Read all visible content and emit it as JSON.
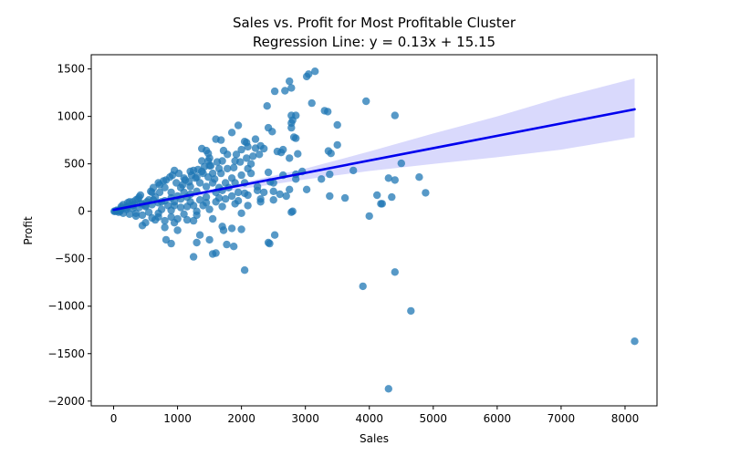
{
  "chart_data": {
    "type": "scatter",
    "title_line1": "Sales vs. Profit for Most Profitable Cluster",
    "title_line2": "Regression Line: y = 0.13x + 15.15",
    "xlabel": "Sales",
    "ylabel": "Profit",
    "xlim": [
      -350,
      8500
    ],
    "ylim": [
      -2050,
      1650
    ],
    "xticks": [
      0,
      1000,
      2000,
      3000,
      4000,
      5000,
      6000,
      7000,
      8000
    ],
    "yticks": [
      -2000,
      -1500,
      -1000,
      -500,
      0,
      500,
      1000,
      1500
    ],
    "xtick_labels": [
      "0",
      "1000",
      "2000",
      "3000",
      "4000",
      "5000",
      "6000",
      "7000",
      "8000"
    ],
    "ytick_labels": [
      "−2000",
      "−1500",
      "−1000",
      "−500",
      "0",
      "500",
      "1000",
      "1500"
    ],
    "grid": false,
    "colors": {
      "points": "#1f77b4",
      "line": "#0000ee",
      "band": "#d2d2fc"
    },
    "regression": {
      "slope": 0.13,
      "intercept": 15.15
    },
    "confidence_band": {
      "x": [
        0,
        1000,
        2000,
        3000,
        4000,
        5000,
        6000,
        7000,
        8150
      ],
      "lower": [
        8,
        125,
        235,
        335,
        425,
        500,
        570,
        650,
        780
      ],
      "upper": [
        25,
        155,
        300,
        450,
        630,
        820,
        1000,
        1200,
        1400
      ]
    },
    "points": [
      [
        3150,
        1475
      ],
      [
        3050,
        1445
      ],
      [
        3020,
        1420
      ],
      [
        2750,
        1370
      ],
      [
        2680,
        1270
      ],
      [
        2520,
        1265
      ],
      [
        2780,
        1300
      ],
      [
        3100,
        1140
      ],
      [
        3950,
        1160
      ],
      [
        2400,
        1110
      ],
      [
        3300,
        1060
      ],
      [
        3350,
        1050
      ],
      [
        4400,
        1010
      ],
      [
        2780,
        1010
      ],
      [
        2850,
        1010
      ],
      [
        2800,
        960
      ],
      [
        2780,
        930
      ],
      [
        3500,
        910
      ],
      [
        1950,
        905
      ],
      [
        2780,
        880
      ],
      [
        2420,
        880
      ],
      [
        2480,
        840
      ],
      [
        1850,
        830
      ],
      [
        2820,
        780
      ],
      [
        2850,
        770
      ],
      [
        2220,
        760
      ],
      [
        1600,
        760
      ],
      [
        1680,
        750
      ],
      [
        2050,
        735
      ],
      [
        2080,
        725
      ],
      [
        3500,
        700
      ],
      [
        2300,
        690
      ],
      [
        2100,
        680
      ],
      [
        2220,
        665
      ],
      [
        2350,
        660
      ],
      [
        2000,
        650
      ],
      [
        2650,
        650
      ],
      [
        1720,
        640
      ],
      [
        3360,
        635
      ],
      [
        2560,
        630
      ],
      [
        2620,
        620
      ],
      [
        3400,
        610
      ],
      [
        2880,
        605
      ],
      [
        1480,
        610
      ],
      [
        1920,
        600
      ],
      [
        1380,
        660
      ],
      [
        1450,
        640
      ],
      [
        1780,
        600
      ],
      [
        2750,
        560
      ],
      [
        4500,
        505
      ],
      [
        1500,
        560
      ],
      [
        1900,
        530
      ],
      [
        1480,
        530
      ],
      [
        1700,
        530
      ],
      [
        1380,
        530
      ],
      [
        3750,
        430
      ],
      [
        2420,
        410
      ],
      [
        1250,
        430
      ],
      [
        2850,
        390
      ],
      [
        3380,
        390
      ],
      [
        4780,
        360
      ],
      [
        2850,
        340
      ],
      [
        3250,
        340
      ],
      [
        2500,
        300
      ],
      [
        1200,
        420
      ],
      [
        4300,
        350
      ],
      [
        4400,
        330
      ],
      [
        3020,
        230
      ],
      [
        4120,
        170
      ],
      [
        3380,
        160
      ],
      [
        3620,
        140
      ],
      [
        4200,
        80
      ],
      [
        4350,
        150
      ],
      [
        2100,
        170
      ],
      [
        2300,
        130
      ],
      [
        2600,
        180
      ],
      [
        2500,
        210
      ],
      [
        2750,
        230
      ],
      [
        4880,
        195
      ],
      [
        4180,
        80
      ],
      [
        4000,
        -50
      ],
      [
        2800,
        0
      ],
      [
        2780,
        -10
      ],
      [
        2000,
        -20
      ],
      [
        1300,
        -40
      ],
      [
        1200,
        100
      ],
      [
        900,
        10
      ],
      [
        700,
        -60
      ],
      [
        500,
        -120
      ],
      [
        450,
        -150
      ],
      [
        800,
        -170
      ],
      [
        1000,
        -200
      ],
      [
        1700,
        -160
      ],
      [
        1850,
        -180
      ],
      [
        1720,
        -200
      ],
      [
        2000,
        -190
      ],
      [
        1350,
        -250
      ],
      [
        1500,
        -300
      ],
      [
        1300,
        -330
      ],
      [
        1770,
        -350
      ],
      [
        1880,
        -370
      ],
      [
        2520,
        -250
      ],
      [
        2420,
        -330
      ],
      [
        2440,
        -340
      ],
      [
        820,
        -300
      ],
      [
        900,
        -340
      ],
      [
        1250,
        -480
      ],
      [
        1550,
        -450
      ],
      [
        1600,
        -440
      ],
      [
        2050,
        -620
      ],
      [
        3900,
        -790
      ],
      [
        4400,
        -640
      ],
      [
        4650,
        -1050
      ],
      [
        8150,
        -1370
      ],
      [
        4300,
        -1870
      ],
      [
        2250,
        220
      ],
      [
        1650,
        250
      ],
      [
        1350,
        300
      ],
      [
        1850,
        350
      ],
      [
        2150,
        400
      ],
      [
        1050,
        250
      ],
      [
        900,
        200
      ],
      [
        1100,
        350
      ],
      [
        950,
        430
      ],
      [
        700,
        300
      ],
      [
        600,
        200
      ],
      [
        400,
        150
      ],
      [
        300,
        100
      ],
      [
        550,
        120
      ],
      [
        800,
        250
      ],
      [
        1550,
        400
      ],
      [
        1650,
        450
      ],
      [
        1750,
        300
      ],
      [
        1950,
        200
      ],
      [
        2150,
        500
      ],
      [
        1250,
        -100
      ],
      [
        1450,
        150
      ],
      [
        1600,
        100
      ],
      [
        1150,
        50
      ],
      [
        2050,
        300
      ],
      [
        1350,
        120
      ],
      [
        1400,
        60
      ],
      [
        1550,
        -80
      ],
      [
        1150,
        -90
      ],
      [
        950,
        -120
      ],
      [
        650,
        -90
      ],
      [
        350,
        -50
      ],
      [
        250,
        -30
      ],
      [
        150,
        -20
      ],
      [
        200,
        40
      ],
      [
        100,
        15
      ],
      [
        50,
        10
      ],
      [
        120,
        50
      ],
      [
        300,
        60
      ],
      [
        450,
        80
      ],
      [
        250,
        100
      ],
      [
        350,
        120
      ],
      [
        500,
        60
      ],
      [
        650,
        150
      ],
      [
        750,
        100
      ],
      [
        850,
        60
      ],
      [
        950,
        100
      ],
      [
        1050,
        130
      ],
      [
        1200,
        180
      ],
      [
        1300,
        210
      ],
      [
        1450,
        260
      ],
      [
        1550,
        300
      ],
      [
        1600,
        200
      ],
      [
        1700,
        220
      ],
      [
        1800,
        250
      ],
      [
        1900,
        300
      ],
      [
        2000,
        380
      ],
      [
        2100,
        450
      ],
      [
        1500,
        480
      ],
      [
        1400,
        400
      ],
      [
        1300,
        360
      ],
      [
        1200,
        260
      ],
      [
        1100,
        200
      ],
      [
        1000,
        160
      ],
      [
        900,
        140
      ],
      [
        800,
        110
      ],
      [
        700,
        90
      ],
      [
        600,
        70
      ],
      [
        500,
        50
      ],
      [
        400,
        40
      ],
      [
        300,
        30
      ],
      [
        200,
        20
      ],
      [
        100,
        0
      ],
      [
        80,
        -10
      ],
      [
        60,
        5
      ],
      [
        40,
        2
      ],
      [
        20,
        1
      ],
      [
        10,
        0
      ],
      [
        150,
        70
      ],
      [
        220,
        90
      ],
      [
        380,
        130
      ],
      [
        420,
        170
      ],
      [
        580,
        210
      ],
      [
        620,
        250
      ],
      [
        720,
        280
      ],
      [
        780,
        320
      ],
      [
        880,
        360
      ],
      [
        980,
        300
      ],
      [
        1080,
        280
      ],
      [
        1180,
        310
      ],
      [
        1280,
        350
      ],
      [
        1380,
        420
      ],
      [
        1480,
        360
      ],
      [
        1580,
        340
      ],
      [
        1680,
        400
      ],
      [
        1780,
        450
      ],
      [
        1880,
        460
      ],
      [
        1980,
        520
      ],
      [
        2080,
        560
      ],
      [
        2180,
        580
      ],
      [
        2280,
        600
      ],
      [
        1620,
        520
      ],
      [
        1520,
        480
      ],
      [
        1420,
        470
      ],
      [
        1320,
        440
      ],
      [
        1220,
        380
      ],
      [
        1120,
        330
      ],
      [
        1020,
        400
      ],
      [
        920,
        380
      ],
      [
        820,
        330
      ],
      [
        720,
        200
      ],
      [
        620,
        120
      ],
      [
        520,
        100
      ],
      [
        420,
        80
      ],
      [
        320,
        70
      ],
      [
        220,
        50
      ],
      [
        120,
        30
      ],
      [
        700,
        -20
      ],
      [
        900,
        -60
      ],
      [
        1100,
        -30
      ],
      [
        1300,
        0
      ],
      [
        1500,
        20
      ],
      [
        1700,
        50
      ],
      [
        1900,
        80
      ],
      [
        2100,
        60
      ],
      [
        2300,
        100
      ],
      [
        2500,
        120
      ],
      [
        2700,
        160
      ],
      [
        1000,
        -80
      ],
      [
        800,
        -100
      ],
      [
        600,
        -70
      ],
      [
        450,
        -40
      ],
      [
        350,
        -20
      ],
      [
        550,
        -10
      ],
      [
        750,
        20
      ],
      [
        1050,
        40
      ],
      [
        1250,
        60
      ],
      [
        1450,
        90
      ],
      [
        1650,
        140
      ],
      [
        1850,
        160
      ],
      [
        2050,
        190
      ],
      [
        2250,
        260
      ],
      [
        2450,
        310
      ],
      [
        2650,
        380
      ],
      [
        2950,
        420
      ],
      [
        1750,
        130
      ],
      [
        1950,
        110
      ],
      [
        2350,
        200
      ],
      [
        1150,
        150
      ],
      [
        950,
        60
      ]
    ]
  }
}
